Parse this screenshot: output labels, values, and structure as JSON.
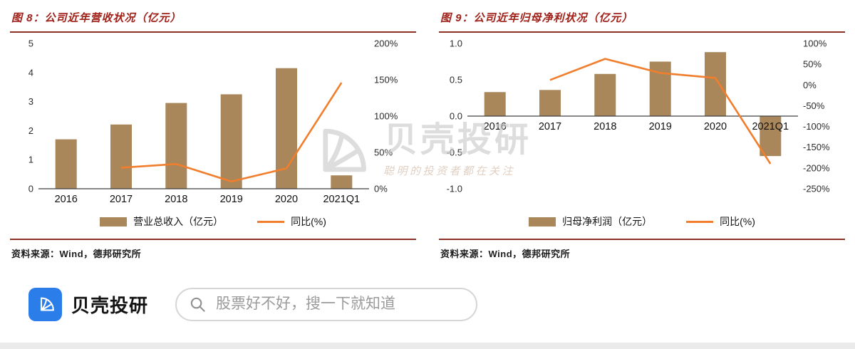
{
  "colors": {
    "title_red": "#a02018",
    "rule_red": "#8c3123",
    "bar_brown": "#a9875a",
    "line_orange": "#f07e2c",
    "logo_blue": "#2b7de9",
    "watermark_gray": "#c8c8c8",
    "watermark_tagline_tan": "#cdb09a"
  },
  "chart_data": [
    {
      "type": "bar+line",
      "title": "图 8：公司近年营收状况（亿元）",
      "source": "资料来源：Wind，德邦研究所",
      "categories": [
        "2016",
        "2017",
        "2018",
        "2019",
        "2020",
        "2021Q1"
      ],
      "series": [
        {
          "name": "营业总收入（亿元）",
          "type": "bar",
          "axis": "left",
          "color": "#a9875a",
          "values": [
            1.7,
            2.21,
            2.95,
            3.25,
            4.15,
            0.46
          ]
        },
        {
          "name": "同比(%)",
          "type": "line",
          "axis": "right",
          "color": "#f07e2c",
          "values": [
            null,
            29,
            34,
            10,
            28,
            146
          ]
        }
      ],
      "left_axis": {
        "min": 0,
        "max": 5,
        "tick_labels": [
          "5",
          "4",
          "3",
          "2",
          "1",
          "0"
        ]
      },
      "right_axis": {
        "min": 0,
        "max": 200,
        "tick_labels": [
          "200%",
          "150%",
          "100%",
          "50%",
          "0%"
        ]
      },
      "grid": false,
      "legend_position": "bottom"
    },
    {
      "type": "bar+line",
      "title": "图 9：公司近年归母净利状况（亿元）",
      "source": "资料来源：Wind，德邦研究所",
      "categories": [
        "2016",
        "2017",
        "2018",
        "2019",
        "2020",
        "2021Q1"
      ],
      "series": [
        {
          "name": "归母净利润（亿元）",
          "type": "bar",
          "axis": "left",
          "color": "#a9875a",
          "values": [
            0.33,
            0.36,
            0.58,
            0.75,
            0.88,
            -0.55
          ]
        },
        {
          "name": "同比(%)",
          "type": "line",
          "axis": "right",
          "color": "#f07e2c",
          "values": [
            null,
            12,
            63,
            29,
            17,
            -190
          ]
        }
      ],
      "left_axis": {
        "min": -1,
        "max": 1,
        "tick_labels": [
          "1.0",
          "0.5",
          "0.0",
          "-0.5",
          "-1.0"
        ]
      },
      "right_axis": {
        "min": -250,
        "max": 100,
        "tick_labels": [
          "100%",
          "50%",
          "0%",
          "-50%",
          "-100%",
          "-150%",
          "-200%",
          "-250%"
        ]
      },
      "grid": false,
      "legend_position": "bottom"
    }
  ],
  "watermark": {
    "brand": "贝壳投研",
    "tagline": "聪明的投资者都在关注"
  },
  "footer": {
    "brand": "贝壳投研",
    "search_placeholder": "股票好不好，搜一下就知道"
  }
}
